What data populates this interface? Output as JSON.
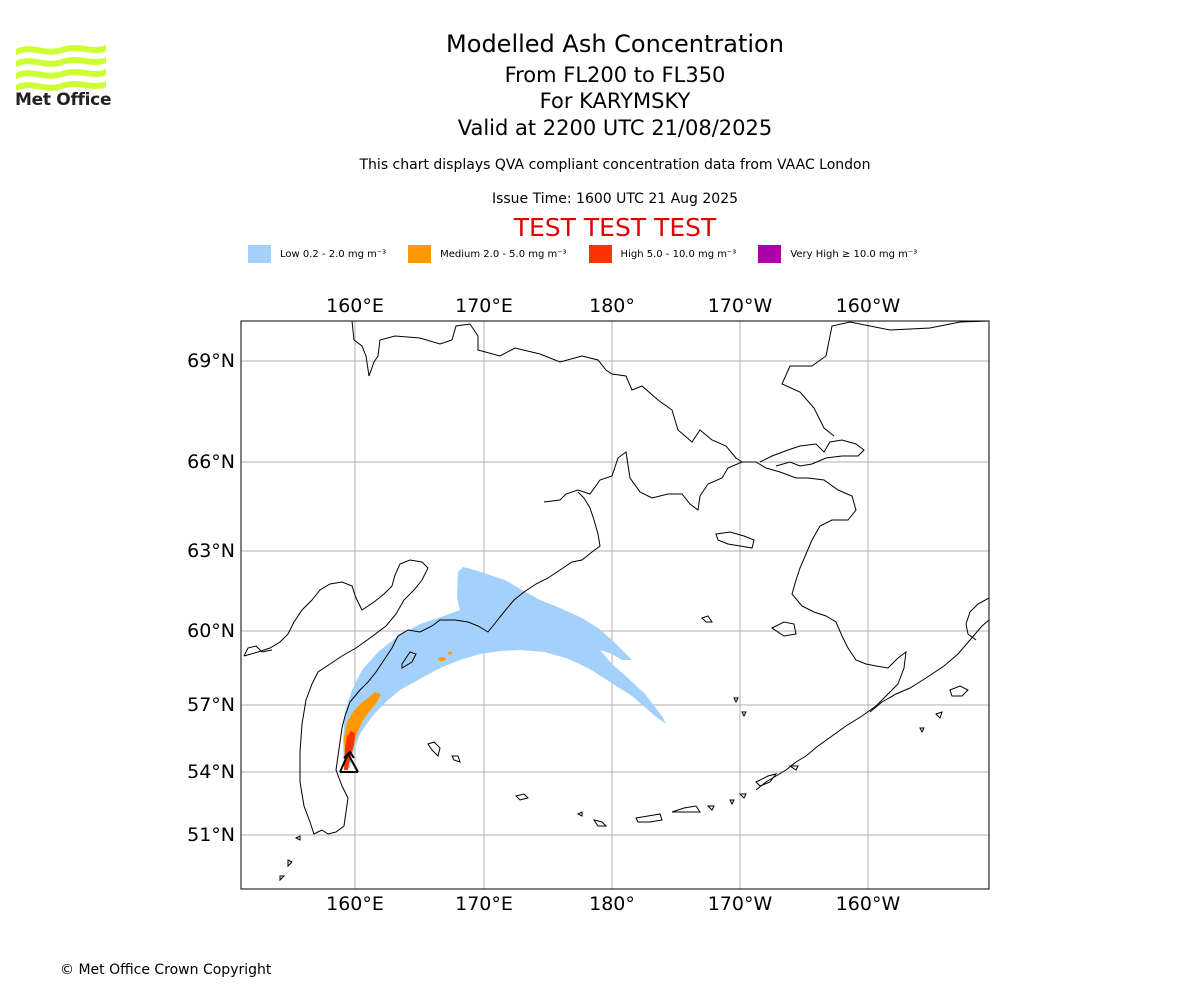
{
  "logo": {
    "text": "Met Office",
    "color": "#ccff33"
  },
  "titles": {
    "main": "Modelled Ash Concentration",
    "levels": "From FL200 to FL350",
    "volcano": "For KARYMSKY",
    "valid": "Valid at 2200 UTC 21/08/2025",
    "note": "This chart displays QVA compliant concentration data from VAAC London",
    "issue": "Issue Time: 1600 UTC 21 Aug 2025",
    "test": "TEST TEST TEST"
  },
  "legend": [
    {
      "label": "Low 0.2 - 2.0 mg m⁻³",
      "color": "#a3d1fb"
    },
    {
      "label": "Medium 2.0 - 5.0 mg m⁻³",
      "color": "#ff9900"
    },
    {
      "label": "High 5.0 - 10.0 mg m⁻³",
      "color": "#ff3300"
    },
    {
      "label": "Very High ≥ 10.0 mg m⁻³",
      "color": "#aa00aa"
    }
  ],
  "map": {
    "lon_ticks_top": [
      "160°E",
      "170°E",
      "180°",
      "170°W",
      "160°W"
    ],
    "lon_ticks_bottom": [
      "160°E",
      "170°E",
      "180°",
      "170°W",
      "160°W"
    ],
    "lat_ticks": [
      "69°N",
      "66°N",
      "63°N",
      "60°N",
      "57°N",
      "54°N",
      "51°N"
    ],
    "gridlines": true
  },
  "footer": "© Met Office Crown Copyright"
}
